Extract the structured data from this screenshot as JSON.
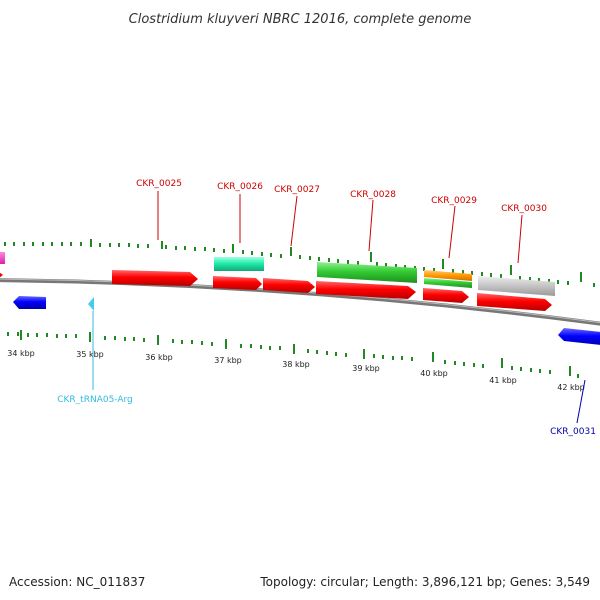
{
  "title": "Clostridium kluyveri NBRC 12016, complete genome",
  "accession": "Accession: NC_011837",
  "summary": "Topology: circular; Length: 3,896,121 bp; Genes: 3,549",
  "colors": {
    "cds_forward": "#ff0000",
    "cds_reverse": "#0000ff",
    "trna": "#44ccee",
    "backbone": "#808080",
    "ticks": "#228822",
    "label_red": "#cc0000",
    "label_blue": "#0000aa",
    "label_cyan": "#33bbdd"
  },
  "scale": {
    "labels": [
      "34 kbp",
      "35 kbp",
      "36 kbp",
      "37 kbp",
      "38 kbp",
      "39 kbp",
      "40 kbp",
      "41 kbp",
      "42 kbp"
    ]
  },
  "genes": {
    "ckr_0025": "CKR_0025",
    "ckr_0026": "CKR_0026",
    "ckr_0027": "CKR_0027",
    "ckr_0028": "CKR_0028",
    "ckr_0029": "CKR_0029",
    "ckr_0030": "CKR_0030",
    "ckr_0031": "CKR_0031",
    "trna05": "CKR_tRNA05-Arg"
  }
}
